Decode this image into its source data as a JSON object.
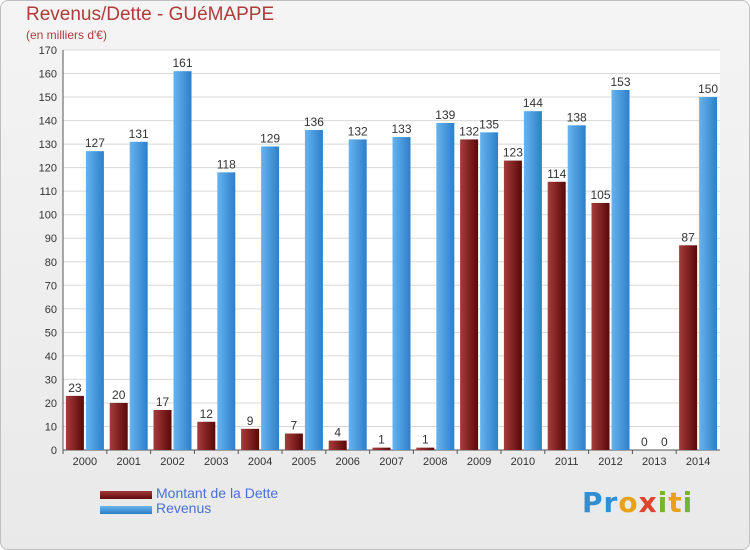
{
  "title": "Revenus/Dette - GUéMAPPE",
  "subtitle": "(en milliers d'€)",
  "logo_text": "Proxiti",
  "colors": {
    "debt": "#7a1414",
    "revenue": "#3a8fdc",
    "title": "#b13a3a",
    "legend_text": "#4a6fd8",
    "grid": "#d8d8d8"
  },
  "chart_data": {
    "type": "bar",
    "categories": [
      "2000",
      "2001",
      "2002",
      "2003",
      "2004",
      "2005",
      "2006",
      "2007",
      "2008",
      "2009",
      "2010",
      "2011",
      "2012",
      "2013",
      "2014"
    ],
    "series": [
      {
        "name": "Montant de la Dette",
        "values": [
          23,
          20,
          17,
          12,
          9,
          7,
          4,
          1,
          1,
          132,
          123,
          114,
          105,
          0,
          87
        ]
      },
      {
        "name": "Revenus",
        "values": [
          127,
          131,
          161,
          118,
          129,
          136,
          132,
          133,
          139,
          135,
          144,
          138,
          153,
          0,
          150
        ]
      }
    ],
    "ylim": [
      0,
      170
    ],
    "yticks": [
      0,
      10,
      20,
      30,
      40,
      50,
      60,
      70,
      80,
      90,
      100,
      110,
      120,
      130,
      140,
      150,
      160,
      170
    ],
    "grid": true,
    "legend_position": "bottom-left"
  }
}
